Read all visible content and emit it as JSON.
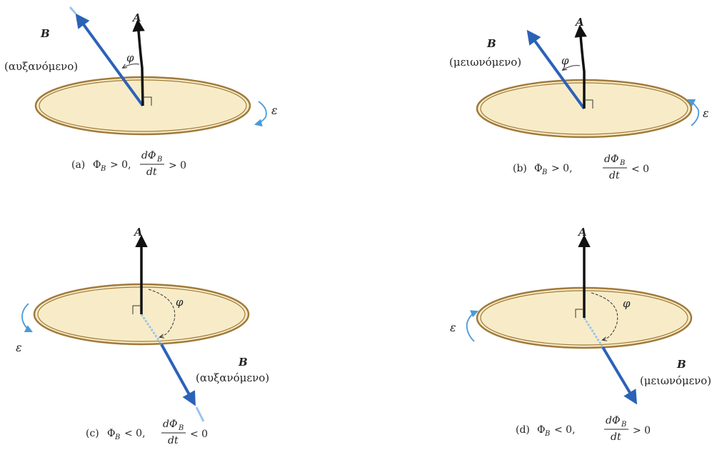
{
  "colors": {
    "disk_fill": "#f8ecc8",
    "ring": "#a07a3a",
    "b_vector": "#2b62b8",
    "b_vector_light": "#9cc4e8",
    "a_vector": "#111111",
    "emf_arrow": "#4a9ad8",
    "text": "#222222"
  },
  "panels": [
    {
      "id": "a",
      "label_A": "A",
      "label_B": "B",
      "b_state": "(αυξανόμενο)",
      "label_phi": "φ",
      "label_emf": "ε",
      "caption": {
        "letter": "(a)",
        "flux": "Φ",
        "flux_sub": "B",
        "flux_rel": "> 0,",
        "deriv_num": "dΦ",
        "deriv_num_sub": "B",
        "deriv_den": "dt",
        "deriv_rel": "> 0"
      }
    },
    {
      "id": "b",
      "label_A": "A",
      "label_B": "B",
      "b_state": "(μειωνόμενο)",
      "label_phi": "φ",
      "label_emf": "ε",
      "caption": {
        "letter": "(b)",
        "flux": "Φ",
        "flux_sub": "B",
        "flux_rel": "> 0,",
        "deriv_num": "dΦ",
        "deriv_num_sub": "B",
        "deriv_den": "dt",
        "deriv_rel": "< 0"
      }
    },
    {
      "id": "c",
      "label_A": "A",
      "label_B": "B",
      "b_state": "(αυξανόμενο)",
      "label_phi": "φ",
      "label_emf": "ε",
      "caption": {
        "letter": "(c)",
        "flux": "Φ",
        "flux_sub": "B",
        "flux_rel": "< 0,",
        "deriv_num": "dΦ",
        "deriv_num_sub": "B",
        "deriv_den": "dt",
        "deriv_rel": "< 0"
      }
    },
    {
      "id": "d",
      "label_A": "A",
      "label_B": "B",
      "b_state": "(μειωνόμενο)",
      "label_phi": "φ",
      "label_emf": "ε",
      "caption": {
        "letter": "(d)",
        "flux": "Φ",
        "flux_sub": "B",
        "flux_rel": "< 0,",
        "deriv_num": "dΦ",
        "deriv_num_sub": "B",
        "deriv_den": "dt",
        "deriv_rel": "> 0"
      }
    }
  ]
}
